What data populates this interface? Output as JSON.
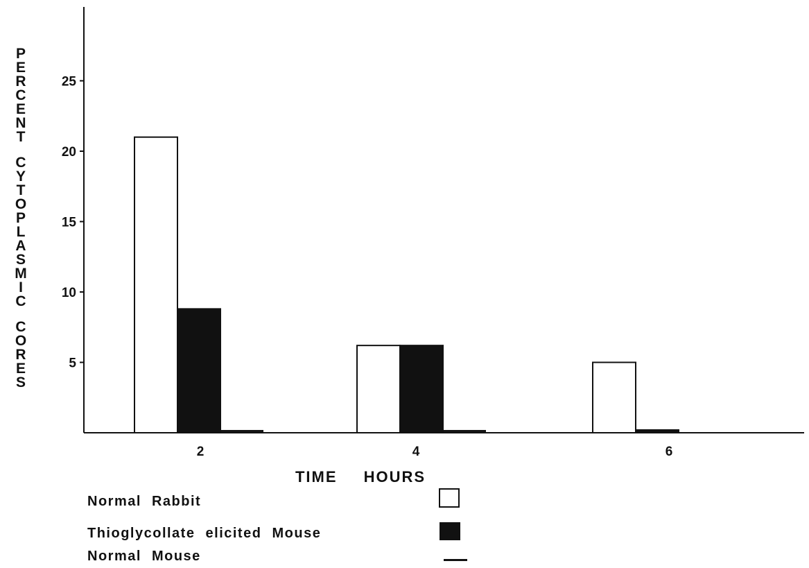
{
  "chart_data": {
    "type": "bar",
    "xlabel": "TIME HOURS",
    "ylabel": "PERCENT CYTOPLASMIC CORES",
    "categories": [
      "2",
      "4",
      "6"
    ],
    "y_ticks": [
      "5",
      "10",
      "15",
      "20",
      "25"
    ],
    "ylim": [
      0,
      30
    ],
    "grid": false,
    "legend_position": "bottom",
    "series": [
      {
        "name": "Normal Rabbit",
        "style": "open",
        "color": "#ffffff",
        "values": [
          21,
          6.2,
          5
        ]
      },
      {
        "name": "Thioglycollate elicited Mouse",
        "style": "filled",
        "color": "#111111",
        "values": [
          8.8,
          6.2,
          0.2
        ]
      },
      {
        "name": "Normal Mouse",
        "style": "line",
        "color": "#111111",
        "values": [
          0.1,
          0.1,
          0
        ]
      }
    ]
  }
}
